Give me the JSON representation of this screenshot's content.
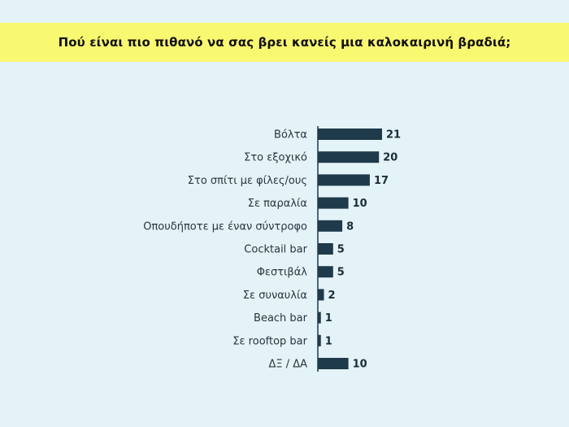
{
  "title": "Πού είναι πιο πιθανό να σας βρει κανείς μια καλοκαιρινή βραδιά;",
  "colors": {
    "background": "#e4f3f7",
    "title_band": "#f9f871",
    "bar": "#1f3a4a",
    "axis": "#1f3a4a"
  },
  "chart_data": {
    "type": "bar",
    "orientation": "horizontal",
    "title": "Πού είναι πιο πιθανό να σας βρει κανείς μια καλοκαιρινή βραδιά;",
    "categories": [
      "Βόλτα",
      "Στο εξοχικό",
      "Στο σπίτι με φίλες/ους",
      "Σε παραλία",
      "Οπουδήποτε με έναν σύντροφο",
      "Cocktail bar",
      "Φεστιβάλ",
      "Σε συναυλία",
      "Beach bar",
      "Σε rooftop bar",
      "ΔΞ / ΔΑ"
    ],
    "values": [
      21,
      20,
      17,
      10,
      8,
      5,
      5,
      2,
      1,
      1,
      10
    ],
    "data_labels": [
      "21",
      "20",
      "17",
      "10",
      "8",
      "5",
      "5",
      "2",
      "1",
      "1",
      "10"
    ],
    "xlabel": "",
    "ylabel": "",
    "xlim": [
      0,
      21
    ],
    "grid": false,
    "legend": "none"
  }
}
